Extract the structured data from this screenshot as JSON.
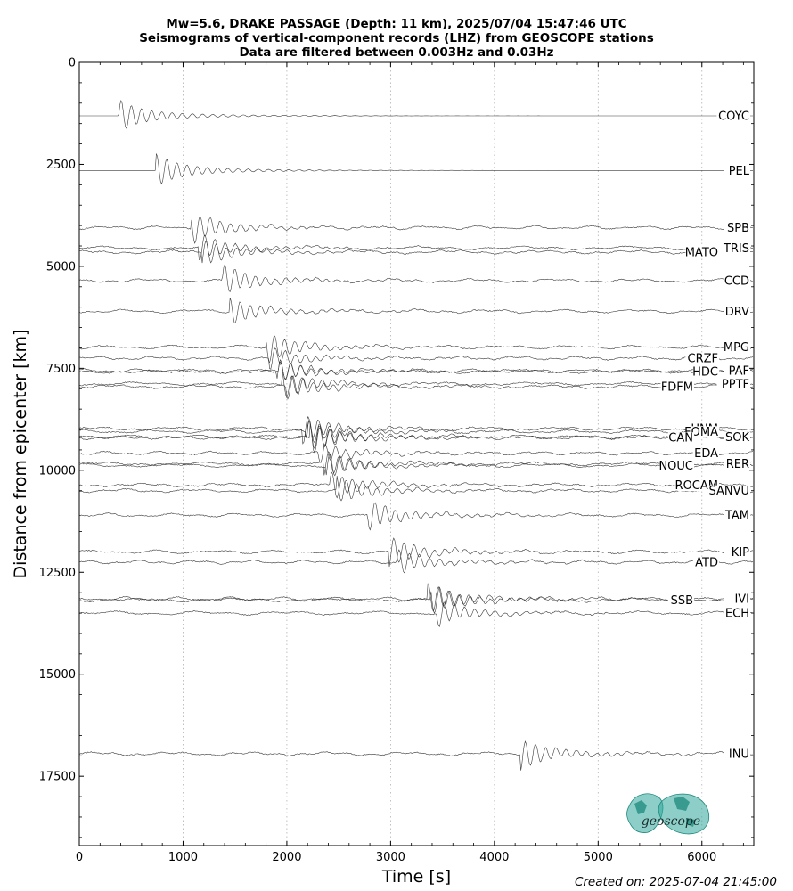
{
  "chart_data": {
    "type": "line",
    "title_lines": [
      "Mw=5.6, DRAKE PASSAGE (Depth: 11 km), 2025/07/04 15:47:46 UTC",
      "Seismograms of vertical-component records (LHZ) from GEOSCOPE stations",
      "Data are filtered between 0.003Hz and 0.03Hz"
    ],
    "xlabel": "Time [s]",
    "ylabel": "Distance from epicenter [km]",
    "xlim": [
      0,
      6500
    ],
    "ylim": [
      19200,
      0
    ],
    "xticks": [
      0,
      1000,
      2000,
      3000,
      4000,
      5000,
      6000
    ],
    "yticks": [
      0,
      2500,
      5000,
      7500,
      10000,
      12500,
      15000,
      17500
    ],
    "grid": "vertical dotted at x ticks",
    "stations": [
      {
        "name": "COYC",
        "distance": 1310,
        "onset": 380,
        "amp": 14,
        "side": "right"
      },
      {
        "name": "PEL",
        "distance": 2650,
        "onset": 740,
        "amp": 14,
        "side": "right"
      },
      {
        "name": "SPB",
        "distance": 4050,
        "onset": 1080,
        "amp": 14,
        "side": "right"
      },
      {
        "name": "TRIS",
        "distance": 4550,
        "onset": 1150,
        "amp": 12,
        "side": "right"
      },
      {
        "name": "MATO",
        "distance": 4650,
        "onset": 1180,
        "amp": 12,
        "side": "left"
      },
      {
        "name": "CCD",
        "distance": 5350,
        "onset": 1380,
        "amp": 14,
        "side": "right"
      },
      {
        "name": "DRV",
        "distance": 6100,
        "onset": 1450,
        "amp": 12,
        "side": "right"
      },
      {
        "name": "MPG",
        "distance": 6980,
        "onset": 1800,
        "amp": 14,
        "side": "right"
      },
      {
        "name": "CRZF",
        "distance": 7250,
        "onset": 1830,
        "amp": 10,
        "side": "left"
      },
      {
        "name": "PAF",
        "distance": 7560,
        "onset": 1900,
        "amp": 10,
        "side": "right"
      },
      {
        "name": "HDC",
        "distance": 7580,
        "onset": 1920,
        "amp": 10,
        "side": "left"
      },
      {
        "name": "PPTF",
        "distance": 7880,
        "onset": 1950,
        "amp": 12,
        "side": "right"
      },
      {
        "name": "FDFM",
        "distance": 7950,
        "onset": 1980,
        "amp": 12,
        "side": "left"
      },
      {
        "name": "UNM",
        "distance": 8980,
        "onset": 2150,
        "amp": 12,
        "side": "left"
      },
      {
        "name": "FOMA",
        "distance": 9050,
        "onset": 2180,
        "amp": 12,
        "side": "left"
      },
      {
        "name": "SOK",
        "distance": 9180,
        "onset": 2200,
        "amp": 14,
        "side": "right"
      },
      {
        "name": "CAN",
        "distance": 9200,
        "onset": 2220,
        "amp": 14,
        "side": "left"
      },
      {
        "name": "EDA",
        "distance": 9580,
        "onset": 2300,
        "amp": 10,
        "side": "left"
      },
      {
        "name": "RER",
        "distance": 9840,
        "onset": 2350,
        "amp": 12,
        "side": "right"
      },
      {
        "name": "NOUC",
        "distance": 9880,
        "onset": 2380,
        "amp": 12,
        "side": "left"
      },
      {
        "name": "ROCAM",
        "distance": 10360,
        "onset": 2420,
        "amp": 12,
        "side": "left"
      },
      {
        "name": "SANVU",
        "distance": 10500,
        "onset": 2480,
        "amp": 12,
        "side": "right"
      },
      {
        "name": "TAM",
        "distance": 11100,
        "onset": 2780,
        "amp": 14,
        "side": "right"
      },
      {
        "name": "KIP",
        "distance": 12000,
        "onset": 2980,
        "amp": 14,
        "side": "right"
      },
      {
        "name": "ATD",
        "distance": 12250,
        "onset": 3050,
        "amp": 12,
        "side": "left"
      },
      {
        "name": "IVI",
        "distance": 13150,
        "onset": 3350,
        "amp": 14,
        "side": "right"
      },
      {
        "name": "SSB",
        "distance": 13180,
        "onset": 3380,
        "amp": 14,
        "side": "left"
      },
      {
        "name": "ECH",
        "distance": 13500,
        "onset": 3450,
        "amp": 12,
        "side": "right"
      },
      {
        "name": "INU",
        "distance": 16950,
        "onset": 4250,
        "amp": 14,
        "side": "right"
      }
    ]
  },
  "logo": {
    "text": "geoscope",
    "color": "#2fa89a"
  },
  "footer": "Created on: 2025-07-04 21:45:00"
}
